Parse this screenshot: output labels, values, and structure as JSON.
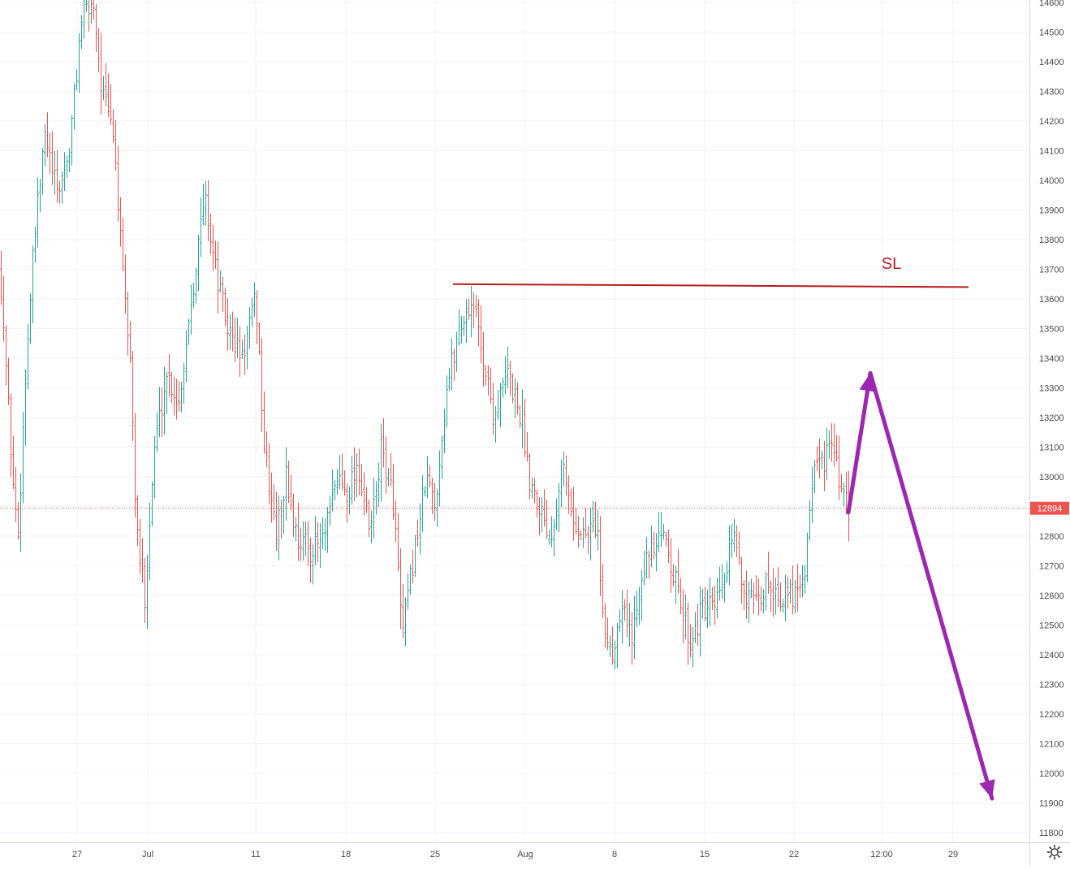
{
  "chart_data": {
    "type": "ohlc",
    "y_axis": {
      "ticks": [
        11800,
        11900,
        12000,
        12100,
        12200,
        12300,
        12400,
        12500,
        12600,
        12700,
        12800,
        12900,
        13000,
        13100,
        13200,
        13300,
        13400,
        13500,
        13600,
        13700,
        13800,
        13900,
        14000,
        14100,
        14200,
        14300,
        14400,
        14500,
        14600
      ],
      "range": [
        11745,
        14610
      ]
    },
    "x_axis": {
      "tick_labels": [
        "27",
        "Jul",
        "11",
        "18",
        "25",
        "Aug",
        "8",
        "15",
        "22",
        "12:00",
        "29"
      ]
    },
    "current_price": 12894,
    "current_price_label": "12894",
    "series_colors": {
      "up": "#26a69a",
      "down": "#ef5350"
    },
    "price_segments": [
      [
        0,
        13700
      ],
      [
        15,
        13000
      ],
      [
        22,
        12800
      ],
      [
        32,
        13400
      ],
      [
        42,
        13800
      ],
      [
        55,
        14150
      ],
      [
        70,
        13950
      ],
      [
        85,
        14100
      ],
      [
        100,
        14550
      ],
      [
        115,
        14600
      ],
      [
        125,
        14300
      ],
      [
        140,
        14150
      ],
      [
        150,
        13700
      ],
      [
        160,
        13400
      ],
      [
        168,
        12800
      ],
      [
        178,
        12600
      ],
      [
        190,
        13100
      ],
      [
        205,
        13350
      ],
      [
        220,
        13250
      ],
      [
        235,
        13600
      ],
      [
        252,
        13950
      ],
      [
        265,
        13700
      ],
      [
        280,
        13500
      ],
      [
        298,
        13400
      ],
      [
        315,
        13600
      ],
      [
        325,
        13100
      ],
      [
        340,
        12800
      ],
      [
        352,
        13000
      ],
      [
        365,
        12800
      ],
      [
        385,
        12750
      ],
      [
        400,
        12800
      ],
      [
        415,
        13000
      ],
      [
        428,
        12950
      ],
      [
        440,
        13050
      ],
      [
        455,
        12800
      ],
      [
        470,
        13100
      ],
      [
        485,
        12900
      ],
      [
        495,
        12450
      ],
      [
        510,
        12750
      ],
      [
        525,
        13000
      ],
      [
        535,
        12900
      ],
      [
        550,
        13300
      ],
      [
        565,
        13500
      ],
      [
        582,
        13600
      ],
      [
        595,
        13400
      ],
      [
        608,
        13200
      ],
      [
        625,
        13350
      ],
      [
        642,
        13200
      ],
      [
        652,
        13000
      ],
      [
        665,
        12900
      ],
      [
        678,
        12800
      ],
      [
        692,
        13050
      ],
      [
        705,
        12850
      ],
      [
        720,
        12800
      ],
      [
        735,
        12850
      ],
      [
        742,
        12500
      ],
      [
        755,
        12400
      ],
      [
        765,
        12600
      ],
      [
        778,
        12450
      ],
      [
        790,
        12700
      ],
      [
        805,
        12750
      ],
      [
        820,
        12800
      ],
      [
        835,
        12600
      ],
      [
        850,
        12450
      ],
      [
        865,
        12550
      ],
      [
        880,
        12550
      ],
      [
        892,
        12650
      ],
      [
        905,
        12800
      ],
      [
        918,
        12600
      ],
      [
        932,
        12550
      ],
      [
        945,
        12650
      ],
      [
        960,
        12600
      ],
      [
        975,
        12600
      ],
      [
        992,
        12700
      ],
      [
        1000,
        13000
      ],
      [
        1012,
        13050
      ],
      [
        1025,
        13100
      ],
      [
        1035,
        12950
      ],
      [
        1045,
        12880
      ]
    ],
    "annotations": {
      "horizontal_line": {
        "label": "SL",
        "color": "#b71c1c",
        "y_values": [
          13650,
          13640
        ]
      },
      "path_arrows": {
        "color": "#9c27b0",
        "points": [
          [
            1045,
            12880
          ],
          [
            1072,
            13350
          ],
          [
            1222,
            11915
          ]
        ]
      }
    }
  },
  "toolbar": {
    "settings_icon": "gear-icon"
  }
}
